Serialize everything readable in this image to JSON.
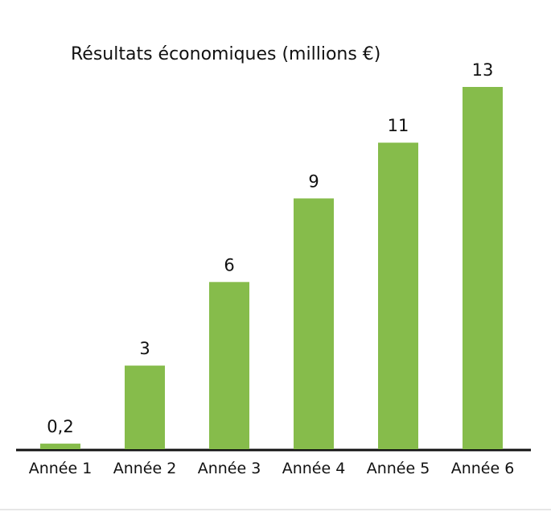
{
  "chart_data": {
    "type": "bar",
    "title": "Résultats économiques (millions €)",
    "categories": [
      "Année 1",
      "Année 2",
      "Année 3",
      "Année 4",
      "Année 5",
      "Année 6"
    ],
    "values": [
      0.2,
      3,
      6,
      9,
      11,
      13
    ],
    "value_labels": [
      "0,2",
      "3",
      "6",
      "9",
      "11",
      "13"
    ],
    "color": "#86bc4b",
    "ylim": [
      0,
      13
    ]
  }
}
